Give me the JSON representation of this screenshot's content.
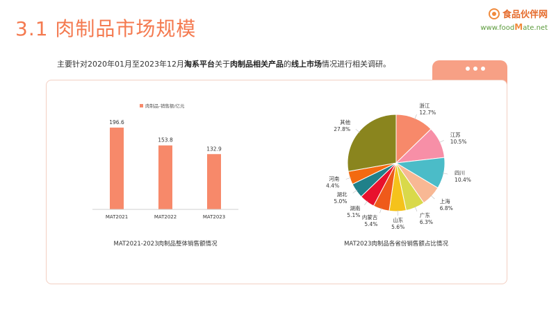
{
  "header": {
    "title": "3.1 肉制品市场规模",
    "logo_cn": "食品伙伴网",
    "logo_url_pre": "www.food",
    "logo_url_big": "M",
    "logo_url_post": "ate.net"
  },
  "intro": {
    "p1": "主要针对2020年01月至2023年12月",
    "b1": "淘系平台",
    "p2": "关于",
    "b2": "肉制品相关产品",
    "p3": "的",
    "b3": "线上市场",
    "p4": "情况进行相关调研。"
  },
  "colors": {
    "accent": "#f47a50",
    "bar": "#f7896a",
    "card_border": "#f3cfc2"
  },
  "chart_data": [
    {
      "type": "bar",
      "title": "MAT2021-2023肉制品整体销售额情况",
      "categories": [
        "MAT2021",
        "MAT2022",
        "MAT2023"
      ],
      "series": [
        {
          "name": "肉制品-销售额/亿元",
          "values": [
            196.6,
            153.8,
            132.9
          ]
        }
      ],
      "value_labels": [
        "196.6",
        "153.8",
        "132.9"
      ],
      "ylim": [
        0,
        220
      ],
      "grid": false,
      "legend_position": "top"
    },
    {
      "type": "pie",
      "title": "MAT2023肉制品各省份销售额占比情况",
      "slices": [
        {
          "label": "浙江",
          "value": 12.7,
          "pct": "12.7%",
          "color": "#f7896a"
        },
        {
          "label": "江苏",
          "value": 10.5,
          "pct": "10.5%",
          "color": "#f78fa7"
        },
        {
          "label": "四川",
          "value": 10.4,
          "pct": "10.4%",
          "color": "#4bbcc8"
        },
        {
          "label": "上海",
          "value": 6.8,
          "pct": "6.8%",
          "color": "#f8b894"
        },
        {
          "label": "广东",
          "value": 6.3,
          "pct": "6.3%",
          "color": "#d9d94a"
        },
        {
          "label": "山东",
          "value": 5.6,
          "pct": "5.6%",
          "color": "#f5c21b"
        },
        {
          "label": "内蒙古",
          "value": 5.4,
          "pct": "5.4%",
          "color": "#ef5a1a"
        },
        {
          "label": "湖南",
          "value": 5.1,
          "pct": "5.1%",
          "color": "#e8112d"
        },
        {
          "label": "湖北",
          "value": 5.0,
          "pct": "5.0%",
          "color": "#20818a"
        },
        {
          "label": "河南",
          "value": 4.4,
          "pct": "4.4%",
          "color": "#f36a10"
        },
        {
          "label": "其他",
          "value": 27.8,
          "pct": "27.8%",
          "color": "#8a851e"
        }
      ]
    }
  ]
}
